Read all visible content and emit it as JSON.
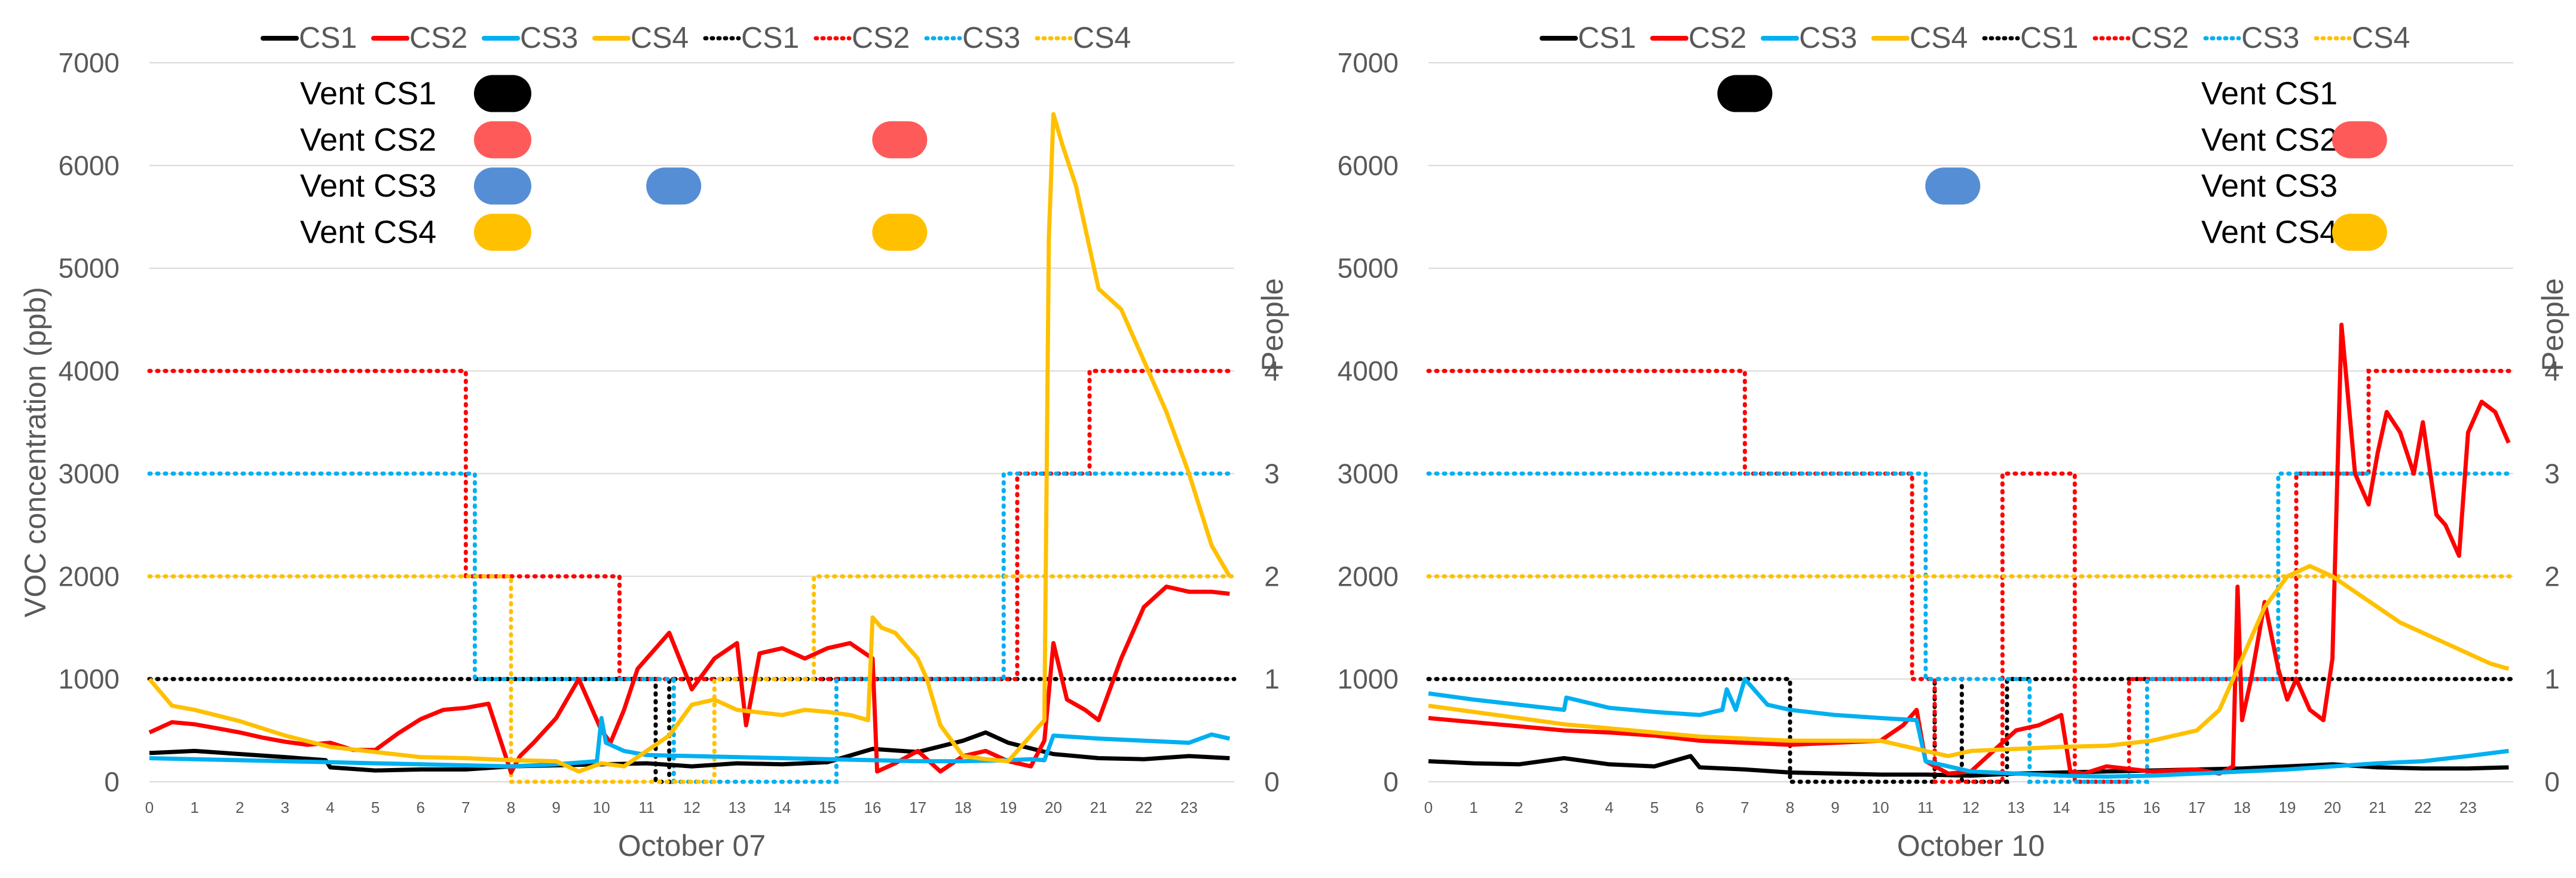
{
  "chart_data": [
    {
      "type": "line",
      "title": "",
      "xlabel": "October 07",
      "ylabel": "VOC concentration (ppb)",
      "y2label": "People",
      "xlim": [
        0,
        24
      ],
      "ylim": [
        0,
        7000
      ],
      "y2lim": [
        0,
        7
      ],
      "xticks": [
        "0",
        "1",
        "2",
        "3",
        "4",
        "5",
        "6",
        "7",
        "8",
        "9",
        "10",
        "11",
        "12",
        "13",
        "14",
        "15",
        "16",
        "17",
        "18",
        "19",
        "20",
        "21",
        "22",
        "23"
      ],
      "yticks": [
        "0",
        "1000",
        "2000",
        "3000",
        "4000",
        "5000",
        "6000",
        "7000"
      ],
      "y2ticks": [
        "0",
        "1",
        "2",
        "3",
        "4"
      ],
      "grid": "horizontal",
      "legend_position": "top",
      "legend": [
        "CS1",
        "CS2",
        "CS3",
        "CS4",
        "CS1",
        "CS2",
        "CS3",
        "CS4"
      ],
      "colors": {
        "CS1": "#000000",
        "CS2": "#ff0000",
        "CS3": "#00b0f0",
        "CS4": "#ffc000"
      },
      "voc_series": [
        {
          "name": "CS1",
          "color": "#000000",
          "x": [
            0,
            1,
            2,
            3,
            3.9,
            4,
            5,
            6,
            7,
            8,
            9,
            10,
            11,
            12,
            13,
            14,
            15,
            16,
            17,
            18,
            18.5,
            19,
            20,
            21,
            22,
            23,
            23.9
          ],
          "values": [
            280,
            300,
            270,
            240,
            210,
            140,
            110,
            120,
            120,
            150,
            160,
            170,
            180,
            150,
            180,
            170,
            190,
            320,
            290,
            400,
            480,
            380,
            270,
            230,
            220,
            250,
            230
          ]
        },
        {
          "name": "CS2",
          "color": "#ff0000",
          "x": [
            0,
            0.5,
            1,
            1.5,
            2,
            2.5,
            3,
            3.5,
            4,
            4.5,
            5,
            5.5,
            6,
            6.5,
            7,
            7.5,
            8,
            8.2,
            8.5,
            9,
            9.5,
            10,
            10.2,
            10.5,
            10.8,
            11,
            11.5,
            12,
            12.5,
            13,
            13.2,
            13.5,
            14,
            14.5,
            15,
            15.5,
            16,
            16.1,
            16.5,
            17,
            17.5,
            18,
            18.5,
            19,
            19.5,
            19.8,
            20,
            20.3,
            20.7,
            21,
            21.5,
            22,
            22.5,
            23,
            23.5,
            23.9
          ],
          "values": [
            480,
            580,
            560,
            520,
            480,
            430,
            390,
            360,
            380,
            310,
            310,
            470,
            610,
            700,
            720,
            760,
            90,
            250,
            380,
            620,
            1000,
            500,
            380,
            700,
            1100,
            1200,
            1450,
            900,
            1200,
            1350,
            550,
            1250,
            1300,
            1200,
            1300,
            1350,
            1200,
            100,
            180,
            300,
            100,
            250,
            300,
            200,
            150,
            400,
            1350,
            800,
            700,
            600,
            1200,
            1700,
            1900,
            1850,
            1850,
            1830
          ]
        },
        {
          "name": "CS3",
          "color": "#00b0f0",
          "x": [
            0,
            1,
            2,
            3,
            4,
            5,
            6,
            7,
            8,
            9,
            9.9,
            10,
            10.1,
            10.5,
            11,
            12,
            13,
            14,
            15,
            16,
            17,
            18,
            19,
            19.5,
            19.8,
            20,
            21,
            22,
            23,
            23.5,
            23.9
          ],
          "values": [
            230,
            220,
            210,
            200,
            190,
            180,
            170,
            160,
            150,
            170,
            200,
            620,
            380,
            300,
            260,
            250,
            240,
            230,
            220,
            210,
            200,
            200,
            210,
            220,
            210,
            450,
            420,
            400,
            380,
            460,
            420
          ]
        },
        {
          "name": "CS4",
          "color": "#ffc000",
          "x": [
            0,
            0.5,
            1,
            2,
            3,
            4,
            5,
            6,
            7,
            8,
            9,
            9.5,
            10,
            10.5,
            11,
            11.5,
            12,
            12.5,
            13,
            14,
            14.5,
            15,
            15.5,
            15.9,
            16,
            16.2,
            16.5,
            17,
            17.2,
            17.5,
            18,
            18.5,
            19,
            19.5,
            19.8,
            19.9,
            20,
            20.2,
            20.5,
            21,
            21.5,
            22,
            22.5,
            23,
            23.5,
            23.9
          ],
          "values": [
            1000,
            740,
            700,
            590,
            450,
            340,
            290,
            240,
            230,
            210,
            200,
            100,
            180,
            150,
            300,
            450,
            750,
            800,
            700,
            650,
            700,
            680,
            650,
            600,
            1600,
            1500,
            1450,
            1200,
            1000,
            550,
            250,
            220,
            200,
            450,
            600,
            5300,
            6500,
            6200,
            5800,
            4800,
            4600,
            4100,
            3600,
            3000,
            2300,
            2000
          ]
        }
      ],
      "people_series": [
        {
          "name": "CS1",
          "color": "#000000",
          "x": [
            0,
            11.2,
            11.2,
            11.5,
            11.5,
            24
          ],
          "values": [
            1,
            1,
            0,
            0,
            1,
            1
          ]
        },
        {
          "name": "CS2",
          "color": "#ff0000",
          "x": [
            0,
            7,
            7,
            10.4,
            10.4,
            11.2,
            11.2,
            19.2,
            19.2,
            20.8,
            20.8,
            24
          ],
          "values": [
            4,
            4,
            2,
            2,
            1,
            1,
            1,
            1,
            3,
            3,
            4,
            4
          ]
        },
        {
          "name": "CS3",
          "color": "#00b0f0",
          "x": [
            0,
            7.2,
            7.2,
            11.6,
            11.6,
            15.2,
            15.2,
            18.9,
            18.9,
            24
          ],
          "values": [
            3,
            3,
            1,
            1,
            0,
            0,
            1,
            1,
            3,
            3
          ]
        },
        {
          "name": "CS4",
          "color": "#ffc000",
          "x": [
            0,
            8,
            8,
            12.5,
            12.5,
            14.7,
            14.7,
            24
          ],
          "values": [
            2,
            2,
            0,
            0,
            1,
            1,
            2,
            2
          ]
        }
      ],
      "vent_labels": [
        "Vent CS1",
        "Vent CS2",
        "Vent CS3",
        "Vent CS4"
      ],
      "vent_events": [
        {
          "series": "CS1",
          "color": "#000000",
          "hours": []
        },
        {
          "series": "CS2",
          "color": "#ff5a5a",
          "hours": [
            16.6
          ]
        },
        {
          "series": "CS3",
          "color": "#558ed5",
          "hours": [
            11.6
          ]
        },
        {
          "series": "CS4",
          "color": "#ffc000",
          "hours": [
            16.6
          ]
        }
      ]
    },
    {
      "type": "line",
      "title": "",
      "xlabel": "October 10",
      "ylabel": "",
      "y2label": "People",
      "xlim": [
        0,
        24
      ],
      "ylim": [
        0,
        7000
      ],
      "y2lim": [
        0,
        7
      ],
      "xticks": [
        "0",
        "1",
        "2",
        "3",
        "4",
        "5",
        "6",
        "7",
        "8",
        "9",
        "10",
        "11",
        "12",
        "13",
        "14",
        "15",
        "16",
        "17",
        "18",
        "19",
        "20",
        "21",
        "22",
        "23"
      ],
      "yticks": [
        "0",
        "1000",
        "2000",
        "3000",
        "4000",
        "5000",
        "6000",
        "7000"
      ],
      "y2ticks": [
        "0",
        "1",
        "2",
        "3",
        "4"
      ],
      "grid": "horizontal",
      "legend_position": "top",
      "legend": [
        "CS1",
        "CS2",
        "CS3",
        "CS4",
        "CS1",
        "CS2",
        "CS3",
        "CS4"
      ],
      "colors": {
        "CS1": "#000000",
        "CS2": "#ff0000",
        "CS3": "#00b0f0",
        "CS4": "#ffc000"
      },
      "voc_series": [
        {
          "name": "CS1",
          "color": "#000000",
          "x": [
            0,
            1,
            2,
            3,
            4,
            5,
            5.8,
            6,
            7,
            8,
            9,
            10,
            11,
            12,
            13,
            14,
            15,
            16,
            17,
            18,
            19,
            20,
            21,
            22,
            23,
            23.9
          ],
          "values": [
            200,
            180,
            170,
            230,
            170,
            150,
            250,
            140,
            120,
            90,
            80,
            70,
            70,
            60,
            80,
            90,
            100,
            110,
            120,
            130,
            150,
            170,
            140,
            130,
            130,
            140
          ]
        },
        {
          "name": "CS2",
          "color": "#ff0000",
          "x": [
            0,
            1,
            2,
            3,
            4,
            5,
            6,
            7,
            8,
            9,
            10,
            10.5,
            10.8,
            11,
            11.5,
            12,
            12.5,
            13,
            13.5,
            14,
            14.2,
            14.5,
            15,
            16,
            17,
            17.5,
            17.8,
            17.9,
            18,
            18.2,
            18.5,
            18.8,
            19,
            19.2,
            19.5,
            19.8,
            20,
            20.2,
            20.5,
            20.8,
            21,
            21.2,
            21.5,
            21.8,
            22,
            22.3,
            22.5,
            22.8,
            23,
            23.3,
            23.6,
            23.9
          ],
          "values": [
            620,
            580,
            540,
            500,
            480,
            450,
            400,
            380,
            360,
            380,
            400,
            550,
            700,
            200,
            80,
            100,
            300,
            500,
            550,
            650,
            100,
            80,
            150,
            100,
            120,
            80,
            150,
            1900,
            600,
            1000,
            1750,
            1100,
            800,
            1000,
            700,
            600,
            1200,
            4450,
            3000,
            2700,
            3200,
            3600,
            3400,
            3000,
            3500,
            2600,
            2500,
            2200,
            3400,
            3700,
            3600,
            3300
          ]
        },
        {
          "name": "CS3",
          "color": "#00b0f0",
          "x": [
            0,
            1,
            2,
            3,
            3.05,
            4,
            5,
            6,
            6.5,
            6.6,
            6.8,
            7,
            7.5,
            8,
            9,
            10,
            10.8,
            11,
            11.5,
            12,
            13,
            14,
            15,
            16,
            17,
            18,
            19,
            20,
            21,
            22,
            23,
            23.9
          ],
          "values": [
            860,
            800,
            750,
            700,
            820,
            720,
            680,
            650,
            700,
            900,
            700,
            1000,
            750,
            700,
            650,
            620,
            600,
            200,
            150,
            100,
            80,
            60,
            50,
            60,
            80,
            100,
            120,
            150,
            180,
            200,
            250,
            300
          ]
        },
        {
          "name": "CS4",
          "color": "#ffc000",
          "x": [
            0,
            1,
            2,
            3,
            4,
            5,
            6,
            7,
            8,
            9,
            10,
            11,
            11.5,
            12,
            13,
            14,
            15,
            16,
            17,
            17.5,
            18,
            18.5,
            19,
            19.5,
            20,
            20.5,
            21,
            21.5,
            22,
            22.5,
            23,
            23.5,
            23.9
          ],
          "values": [
            740,
            680,
            620,
            560,
            520,
            480,
            440,
            420,
            400,
            400,
            400,
            300,
            250,
            300,
            320,
            340,
            350,
            400,
            500,
            700,
            1200,
            1700,
            2000,
            2100,
            2000,
            1850,
            1700,
            1550,
            1450,
            1350,
            1250,
            1150,
            1100
          ]
        }
      ],
      "people_series": [
        {
          "name": "CS1",
          "color": "#000000",
          "x": [
            0,
            8,
            8,
            11.2,
            11.2,
            11.8,
            11.8,
            12.8,
            12.8,
            15.5,
            15.5,
            24
          ],
          "values": [
            1,
            1,
            0,
            0,
            1,
            1,
            0,
            0,
            1,
            1,
            1,
            1
          ]
        },
        {
          "name": "CS2",
          "color": "#ff0000",
          "x": [
            0,
            7,
            7,
            10.7,
            10.7,
            11.2,
            11.2,
            12.7,
            12.7,
            14.3,
            14.3,
            15.5,
            15.5,
            19.2,
            19.2,
            20.8,
            20.8,
            24
          ],
          "values": [
            4,
            4,
            3,
            3,
            1,
            1,
            0,
            0,
            3,
            3,
            0,
            0,
            1,
            1,
            3,
            3,
            4,
            4
          ]
        },
        {
          "name": "CS3",
          "color": "#00b0f0",
          "x": [
            0,
            11,
            11,
            13.3,
            13.3,
            15.9,
            15.9,
            18.8,
            18.8,
            24
          ],
          "values": [
            3,
            3,
            1,
            1,
            0,
            0,
            1,
            1,
            3,
            3
          ]
        },
        {
          "name": "CS4",
          "color": "#ffc000",
          "x": [
            0,
            24
          ],
          "values": [
            2,
            2
          ]
        }
      ],
      "vent_labels": [
        "Vent CS1",
        "Vent CS2",
        "Vent CS3",
        "Vent CS4"
      ],
      "vent_events": [
        {
          "series": "CS1",
          "color": "#000000",
          "hours": [
            7.0
          ]
        },
        {
          "series": "CS2",
          "color": "#ff5a5a",
          "hours": [
            20.6
          ]
        },
        {
          "series": "CS3",
          "color": "#558ed5",
          "hours": [
            11.6
          ]
        },
        {
          "series": "CS4",
          "color": "#ffc000",
          "hours": [
            20.6
          ]
        }
      ]
    }
  ]
}
